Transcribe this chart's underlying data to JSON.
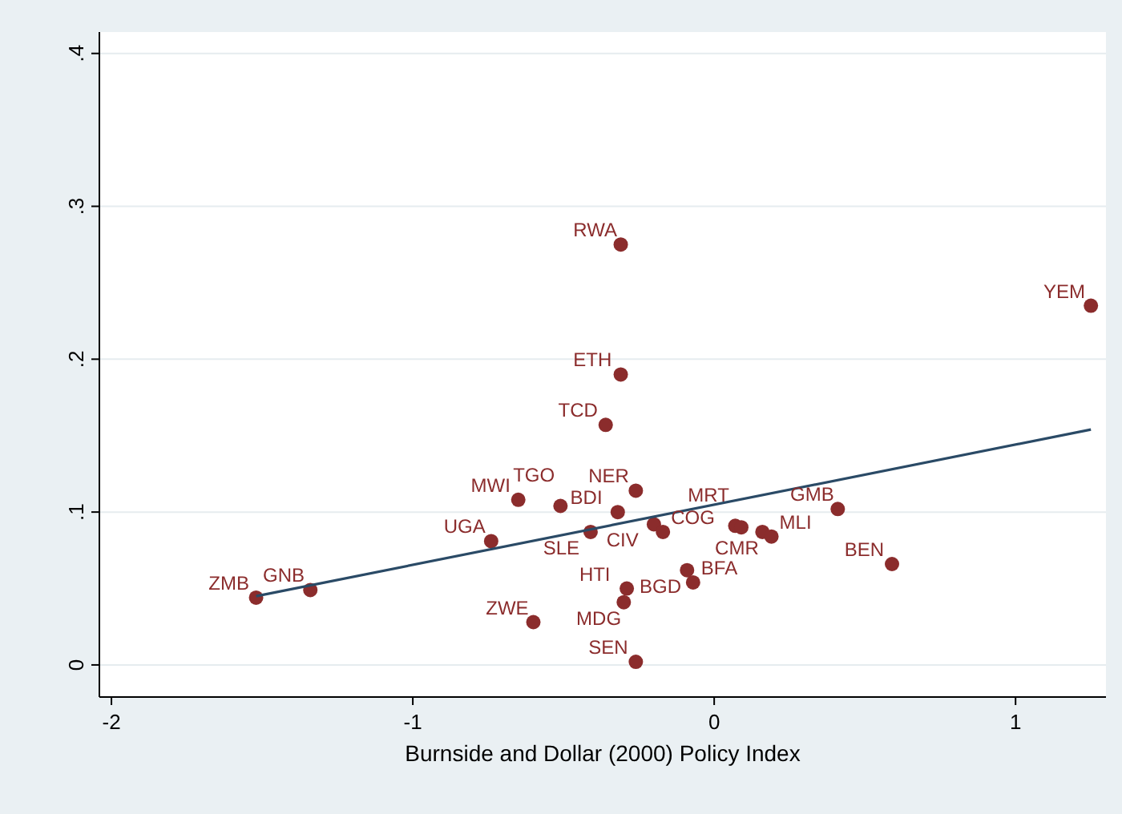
{
  "chart_data": {
    "type": "scatter",
    "xlabel": "Burnside and Dollar (2000) Policy Index",
    "xlim": [
      -2.04,
      1.3
    ],
    "ylim": [
      -0.021,
      0.414
    ],
    "xticks": [
      -2,
      -1,
      0,
      1
    ],
    "yticks": [
      0,
      {
        "value": 0.1,
        "label": ".1"
      },
      {
        "value": 0.2,
        "label": ".2"
      },
      {
        "value": 0.3,
        "label": ".3"
      },
      {
        "value": 0.4,
        "label": ".4"
      }
    ],
    "grid": "y",
    "series": [
      {
        "marker": "circle",
        "color": "#8b2c2c",
        "x": [
          -0.26,
          -0.65,
          -0.51,
          -0.32,
          -0.41,
          -0.2,
          -0.17,
          0.07,
          0.09,
          0.16,
          0.19,
          0.41,
          -0.09,
          -0.07,
          -0.29,
          -0.3,
          -0.6,
          -0.26,
          -0.74,
          -1.52,
          -1.34,
          0.59,
          1.25,
          -0.31,
          -0.31,
          -0.36
        ],
        "values": [
          0.114,
          0.108,
          0.104,
          0.1,
          0.087,
          0.092,
          0.087,
          0.091,
          0.09,
          0.087,
          0.084,
          0.102,
          0.062,
          0.054,
          0.05,
          0.041,
          0.028,
          0.002,
          0.081,
          0.044,
          0.049,
          0.066,
          0.235,
          0.275,
          0.19,
          0.157
        ]
      },
      {
        "type": "line",
        "color": "#2a4a66",
        "x": [
          -1.52,
          1.25
        ],
        "values": [
          0.045,
          0.154
        ]
      }
    ],
    "annotations": [
      {
        "text": "NER",
        "x": -0.26,
        "y": 0.114
      },
      {
        "text": "MWI",
        "x": -0.65,
        "y": 0.108
      },
      {
        "text": "TGO",
        "x": -0.51,
        "y": 0.104
      },
      {
        "text": "BDI",
        "x": -0.32,
        "y": 0.1
      },
      {
        "text": "SLE",
        "x": -0.41,
        "y": 0.087
      },
      {
        "text": "CIV",
        "x": -0.2,
        "y": 0.092
      },
      {
        "text": "COG",
        "x": -0.17,
        "y": 0.087
      },
      {
        "text": "MRT",
        "x": 0.07,
        "y": 0.091
      },
      {
        "text": "CMR",
        "x": 0.16,
        "y": 0.087
      },
      {
        "text": "MLI",
        "x": 0.19,
        "y": 0.084
      },
      {
        "text": "GMB",
        "x": 0.41,
        "y": 0.102
      },
      {
        "text": "BGD",
        "x": -0.09,
        "y": 0.062
      },
      {
        "text": "BFA",
        "x": -0.07,
        "y": 0.054
      },
      {
        "text": "HTI",
        "x": -0.29,
        "y": 0.05
      },
      {
        "text": "MDG",
        "x": -0.3,
        "y": 0.041
      },
      {
        "text": "ZWE",
        "x": -0.6,
        "y": 0.028
      },
      {
        "text": "SEN",
        "x": -0.26,
        "y": 0.002
      },
      {
        "text": "UGA",
        "x": -0.74,
        "y": 0.081
      },
      {
        "text": "ZMB",
        "x": -1.52,
        "y": 0.044
      },
      {
        "text": "GNB",
        "x": -1.34,
        "y": 0.049
      },
      {
        "text": "BEN",
        "x": 0.59,
        "y": 0.066
      },
      {
        "text": "YEM",
        "x": 1.25,
        "y": 0.235
      },
      {
        "text": "RWA",
        "x": -0.31,
        "y": 0.275
      },
      {
        "text": "ETH",
        "x": -0.31,
        "y": 0.19
      },
      {
        "text": "TCD",
        "x": -0.36,
        "y": 0.157
      }
    ]
  }
}
